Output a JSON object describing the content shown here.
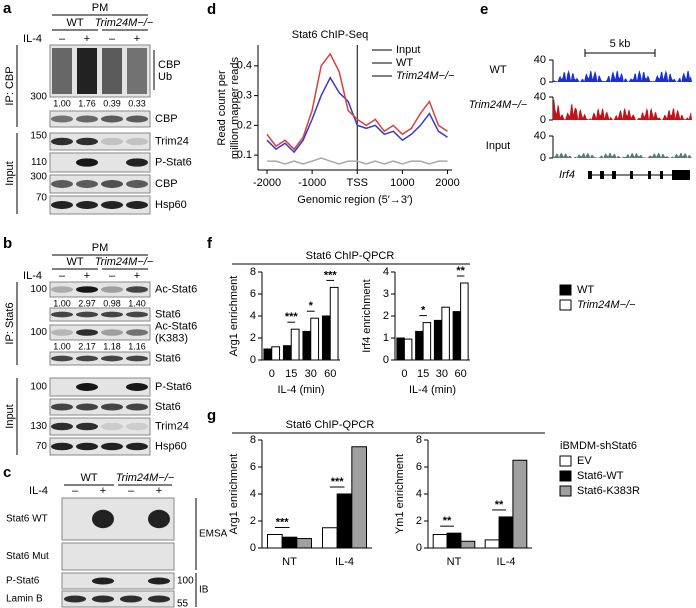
{
  "panel_labels": [
    "a",
    "b",
    "c",
    "d",
    "e",
    "f",
    "g"
  ],
  "blot_a": {
    "header": "PM",
    "genotypes": [
      "WT",
      "Trim24M−/−"
    ],
    "treatment": "IL-4",
    "lanes": [
      "–",
      "+",
      "–",
      "+"
    ],
    "sections": [
      "IP: CBP",
      "Input"
    ],
    "ub_label": [
      "CBP",
      "Ub"
    ],
    "bands": [
      "CBP",
      "Trim24",
      "P-Stat6",
      "CBP",
      "Hsp60"
    ],
    "markers": [
      "300",
      "150",
      "110",
      "300",
      "70"
    ],
    "ratios": [
      "1.00",
      "1.76",
      "0.39",
      "0.33"
    ]
  },
  "blot_b": {
    "header": "PM",
    "genotypes": [
      "WT",
      "Trim24M−/−"
    ],
    "treatment": "IL-4",
    "lanes": [
      "–",
      "+",
      "–",
      "+"
    ],
    "sections": [
      "IP: Stat6",
      "Input"
    ],
    "k383_label": [
      "Ac-Stat6",
      "(K383)"
    ],
    "bands": [
      "Ac-Stat6",
      "Stat6",
      "Stat6",
      "P-Stat6",
      "Stat6",
      "Trim24",
      "Hsp60"
    ],
    "markers": [
      "100",
      "100",
      "100",
      "130",
      "70"
    ],
    "ratios": [
      [
        "1.00",
        "2.97",
        "0.98",
        "1.40"
      ],
      [
        "1.00",
        "2.17",
        "1.18",
        "1.16"
      ]
    ]
  },
  "blot_c": {
    "genotypes": [
      "WT",
      "Trim24M−/−"
    ],
    "treatment": "IL-4",
    "lanes": [
      "–",
      "+",
      "–",
      "+"
    ],
    "bands": [
      "Stat6 WT",
      "Stat6 Mut",
      "P-Stat6",
      "Lamin B"
    ],
    "methods": [
      "EMSA",
      "IB"
    ],
    "markers": [
      "100",
      "55"
    ]
  },
  "tracks_e": {
    "scale": "5 kb",
    "tracks": [
      "WT",
      "Trim24M−/−",
      "Input"
    ],
    "ticks": [
      "40",
      "0"
    ],
    "gene": "Irf4"
  },
  "chart_data": [
    {
      "type": "line",
      "title": "Stat6 ChIP-Seq",
      "y_label": [
        "Read count per",
        "million mapper reads"
      ],
      "x_label": "Genomic region (5′→3′)",
      "x": [
        -2000,
        -1800,
        -1600,
        -1400,
        -1200,
        -1000,
        -800,
        -600,
        -400,
        -200,
        0,
        200,
        400,
        600,
        800,
        1000,
        1200,
        1400,
        1600,
        1800,
        2000
      ],
      "xlim": [
        -2200,
        2100
      ],
      "xticks": [
        -2000,
        -1000,
        {
          "value": 0,
          "label": "TSS"
        },
        1000,
        2000
      ],
      "ylim": [
        0.05,
        0.47
      ],
      "yticks": [
        0.1,
        0.2,
        0.3,
        0.4
      ],
      "series": [
        {
          "name": "Input",
          "color": "#aaaaaa",
          "values": [
            0.08,
            0.08,
            0.07,
            0.08,
            0.07,
            0.08,
            0.09,
            0.08,
            0.07,
            0.08,
            0.08,
            0.07,
            0.08,
            0.07,
            0.08,
            0.07,
            0.08,
            0.08,
            0.07,
            0.08,
            0.08
          ]
        },
        {
          "name": "WT",
          "color": "#3a3ac8",
          "values": [
            0.15,
            0.12,
            0.14,
            0.11,
            0.15,
            0.22,
            0.3,
            0.36,
            0.31,
            0.28,
            0.2,
            0.19,
            0.2,
            0.17,
            0.18,
            0.15,
            0.17,
            0.2,
            0.24,
            0.18,
            0.16
          ]
        },
        {
          "name": "Trim24M−/−",
          "color": "#d94040",
          "values": [
            0.17,
            0.13,
            0.15,
            0.12,
            0.16,
            0.25,
            0.4,
            0.44,
            0.38,
            0.25,
            0.22,
            0.2,
            0.22,
            0.18,
            0.2,
            0.17,
            0.19,
            0.24,
            0.28,
            0.2,
            0.18
          ]
        }
      ]
    },
    {
      "type": "bar",
      "title": "Stat6 ChIP-QPCR",
      "y_label": "Arg1 enrichment",
      "x_label": "IL-4 (min)",
      "categories": [
        "0",
        "15",
        "30",
        "60"
      ],
      "ylim": [
        0,
        8
      ],
      "yticks": [
        0,
        2,
        4,
        6,
        8
      ],
      "series": [
        {
          "name": "WT",
          "color": "#000000",
          "values": [
            1.0,
            1.3,
            2.6,
            4.0
          ]
        },
        {
          "name": "Trim24M−/−",
          "color": "#ffffff",
          "values": [
            1.2,
            2.8,
            3.8,
            6.6
          ]
        }
      ],
      "significance": [
        null,
        "***",
        "*",
        "***"
      ]
    },
    {
      "type": "bar",
      "y_label": "Irf4 enrichment",
      "x_label": "IL-4 (min)",
      "categories": [
        "0",
        "15",
        "30",
        "60"
      ],
      "ylim": [
        0,
        4
      ],
      "yticks": [
        0,
        1,
        2,
        3,
        4
      ],
      "series": [
        {
          "color": "#000000",
          "values": [
            1.0,
            1.3,
            1.8,
            2.2
          ]
        },
        {
          "color": "#ffffff",
          "values": [
            0.95,
            1.7,
            2.4,
            3.5
          ]
        }
      ],
      "significance": [
        null,
        "*",
        null,
        "**"
      ]
    },
    {
      "type": "bar",
      "title": "Stat6 ChIP-QPCR",
      "y_label": "Arg1 enrichment",
      "legend_title": "iBMDM-shStat6",
      "categories": [
        "NT",
        "IL-4"
      ],
      "ylim": [
        0,
        8
      ],
      "yticks": [
        0,
        2,
        4,
        6,
        8
      ],
      "series": [
        {
          "name": "EV",
          "color": "#ffffff",
          "values": [
            1.0,
            1.5
          ]
        },
        {
          "name": "Stat6-WT",
          "color": "#000000",
          "values": [
            0.8,
            4.0
          ]
        },
        {
          "name": "Stat6-K383R",
          "color": "#a0a0a0",
          "values": [
            0.7,
            7.5
          ]
        }
      ],
      "significance": [
        "***",
        "***"
      ]
    },
    {
      "type": "bar",
      "y_label": "Ym1 enrichment",
      "categories": [
        "NT",
        "IL-4"
      ],
      "ylim": [
        0,
        8
      ],
      "yticks": [
        0,
        2,
        4,
        6,
        8
      ],
      "series": [
        {
          "color": "#ffffff",
          "values": [
            1.0,
            0.6
          ]
        },
        {
          "color": "#000000",
          "values": [
            1.1,
            2.3
          ]
        },
        {
          "color": "#a0a0a0",
          "values": [
            0.5,
            6.5
          ]
        }
      ],
      "significance": [
        "**",
        "**"
      ]
    }
  ]
}
